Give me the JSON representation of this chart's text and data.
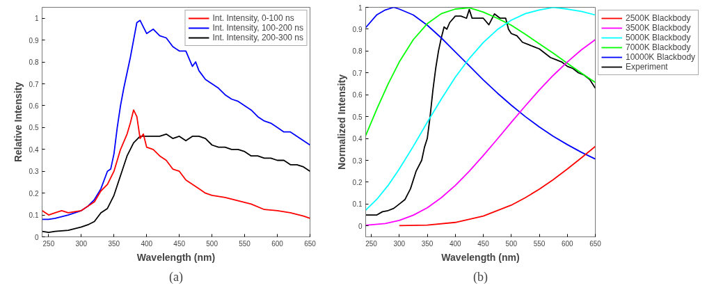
{
  "chart_data": [
    {
      "type": "line",
      "xlabel": "Wavelength (nm)",
      "ylabel": "Relative Intensity",
      "annotations": [
        "(a)"
      ],
      "xlim": [
        240,
        650
      ],
      "ylim": [
        0,
        1.05
      ],
      "xticks": [
        250,
        300,
        350,
        400,
        450,
        500,
        550,
        600,
        650
      ],
      "yticks": [
        0,
        0.1,
        0.2,
        0.3,
        0.4,
        0.5,
        0.6,
        0.7,
        0.8,
        0.9,
        1
      ],
      "grid": false,
      "legend": "top right",
      "marker": "none",
      "line_style": "solid",
      "series": [
        {
          "name": "Int. Intensity, 0-100 ns",
          "color": "#ff0000",
          "x": [
            240,
            250,
            260,
            270,
            280,
            290,
            300,
            310,
            320,
            330,
            340,
            350,
            360,
            370,
            375,
            380,
            385,
            390,
            395,
            400,
            410,
            420,
            430,
            440,
            450,
            460,
            470,
            480,
            490,
            500,
            520,
            540,
            560,
            580,
            600,
            620,
            640,
            650
          ],
          "values": [
            0.12,
            0.1,
            0.11,
            0.12,
            0.11,
            0.115,
            0.12,
            0.14,
            0.16,
            0.21,
            0.24,
            0.3,
            0.4,
            0.47,
            0.52,
            0.58,
            0.55,
            0.45,
            0.47,
            0.41,
            0.4,
            0.37,
            0.35,
            0.31,
            0.3,
            0.26,
            0.24,
            0.22,
            0.2,
            0.19,
            0.18,
            0.165,
            0.15,
            0.125,
            0.12,
            0.11,
            0.095,
            0.085
          ]
        },
        {
          "name": "Int. Intensity, 100-200 ns",
          "color": "#0000ff",
          "x": [
            240,
            250,
            260,
            280,
            300,
            310,
            320,
            330,
            340,
            345,
            350,
            355,
            360,
            365,
            370,
            375,
            380,
            385,
            390,
            395,
            400,
            410,
            420,
            430,
            440,
            450,
            460,
            470,
            475,
            480,
            490,
            500,
            510,
            520,
            530,
            540,
            550,
            560,
            570,
            580,
            590,
            600,
            610,
            620,
            630,
            640,
            650
          ],
          "values": [
            0.08,
            0.08,
            0.085,
            0.1,
            0.12,
            0.14,
            0.17,
            0.22,
            0.3,
            0.31,
            0.38,
            0.5,
            0.6,
            0.68,
            0.75,
            0.82,
            0.9,
            0.98,
            0.99,
            0.96,
            0.93,
            0.95,
            0.92,
            0.91,
            0.87,
            0.85,
            0.85,
            0.78,
            0.8,
            0.76,
            0.72,
            0.7,
            0.68,
            0.65,
            0.63,
            0.62,
            0.6,
            0.58,
            0.55,
            0.53,
            0.52,
            0.5,
            0.48,
            0.48,
            0.46,
            0.44,
            0.42
          ]
        },
        {
          "name": "Int. Intensity, 200-300 ns",
          "color": "#000000",
          "x": [
            240,
            250,
            260,
            280,
            300,
            310,
            320,
            330,
            340,
            350,
            360,
            370,
            380,
            390,
            400,
            410,
            420,
            430,
            440,
            450,
            460,
            470,
            480,
            490,
            500,
            510,
            520,
            530,
            540,
            550,
            560,
            570,
            580,
            590,
            600,
            610,
            620,
            630,
            640,
            650
          ],
          "values": [
            0.025,
            0.02,
            0.025,
            0.03,
            0.045,
            0.055,
            0.07,
            0.11,
            0.13,
            0.19,
            0.28,
            0.37,
            0.43,
            0.46,
            0.46,
            0.46,
            0.46,
            0.47,
            0.45,
            0.46,
            0.44,
            0.46,
            0.46,
            0.45,
            0.42,
            0.41,
            0.41,
            0.4,
            0.4,
            0.39,
            0.37,
            0.37,
            0.36,
            0.36,
            0.35,
            0.35,
            0.33,
            0.33,
            0.32,
            0.3
          ]
        }
      ]
    },
    {
      "type": "line",
      "xlabel": "Wavelength (nm)",
      "ylabel": "Normalized Intensity",
      "annotations": [
        "(b)"
      ],
      "xlim": [
        240,
        650
      ],
      "ylim": [
        -0.05,
        1.0
      ],
      "xticks": [
        250,
        300,
        350,
        400,
        450,
        500,
        550,
        600,
        650
      ],
      "yticks": [
        0,
        0.1,
        0.2,
        0.3,
        0.4,
        0.5,
        0.6,
        0.7,
        0.8,
        0.9,
        1
      ],
      "grid": false,
      "legend": "right",
      "marker": "none",
      "line_style": "solid",
      "series": [
        {
          "name": "2500K Blackbody",
          "color": "#ff0000",
          "x": [
            300,
            350,
            400,
            450,
            500,
            525,
            550,
            575,
            600,
            625,
            650
          ],
          "values": [
            0.001,
            0.004,
            0.016,
            0.045,
            0.095,
            0.129,
            0.168,
            0.212,
            0.26,
            0.311,
            0.364
          ]
        },
        {
          "name": "3500K Blackbody",
          "color": "#ff00ff",
          "x": [
            240,
            275,
            300,
            325,
            350,
            375,
            400,
            425,
            450,
            475,
            500,
            525,
            550,
            575,
            600,
            625,
            650
          ],
          "values": [
            0.003,
            0.011,
            0.025,
            0.049,
            0.083,
            0.129,
            0.185,
            0.25,
            0.322,
            0.397,
            0.474,
            0.549,
            0.622,
            0.689,
            0.75,
            0.805,
            0.852
          ]
        },
        {
          "name": "5000K Blackbody",
          "color": "#00ffff",
          "x": [
            240,
            260,
            280,
            300,
            325,
            350,
            375,
            400,
            425,
            450,
            475,
            500,
            525,
            550,
            575,
            600,
            625,
            650
          ],
          "values": [
            0.072,
            0.122,
            0.185,
            0.26,
            0.364,
            0.474,
            0.58,
            0.68,
            0.766,
            0.839,
            0.898,
            0.941,
            0.971,
            0.988,
            1.0,
            0.992,
            0.981,
            0.965
          ]
        },
        {
          "name": "7000K Blackbody",
          "color": "#00ff00",
          "x": [
            240,
            260,
            280,
            300,
            325,
            350,
            375,
            400,
            425,
            450,
            475,
            500,
            525,
            550,
            575,
            600,
            625,
            650
          ],
          "values": [
            0.413,
            0.535,
            0.649,
            0.75,
            0.852,
            0.925,
            0.971,
            0.992,
            0.998,
            0.978,
            0.95,
            0.918,
            0.877,
            0.833,
            0.79,
            0.744,
            0.699,
            0.656
          ]
        },
        {
          "name": "10000K Blackbody",
          "color": "#0000ff",
          "x": [
            240,
            260,
            275,
            290,
            300,
            325,
            350,
            375,
            400,
            425,
            450,
            475,
            500,
            525,
            550,
            575,
            600,
            625,
            650
          ],
          "values": [
            0.907,
            0.966,
            0.988,
            1.0,
            0.992,
            0.965,
            0.918,
            0.86,
            0.796,
            0.732,
            0.668,
            0.608,
            0.552,
            0.5,
            0.453,
            0.41,
            0.372,
            0.337,
            0.306
          ]
        },
        {
          "name": "Experiment",
          "color": "#000000",
          "x": [
            240,
            250,
            260,
            270,
            280,
            290,
            300,
            310,
            320,
            330,
            340,
            345,
            350,
            355,
            360,
            365,
            370,
            375,
            380,
            385,
            390,
            400,
            410,
            420,
            425,
            430,
            440,
            450,
            460,
            470,
            480,
            490,
            495,
            500,
            510,
            520,
            530,
            540,
            550,
            560,
            570,
            580,
            590,
            600,
            610,
            620,
            630,
            640,
            650
          ],
          "values": [
            0.05,
            0.05,
            0.05,
            0.065,
            0.07,
            0.08,
            0.1,
            0.12,
            0.17,
            0.25,
            0.3,
            0.36,
            0.4,
            0.5,
            0.62,
            0.72,
            0.8,
            0.86,
            0.91,
            0.9,
            0.93,
            0.96,
            0.96,
            0.95,
            0.99,
            0.95,
            0.95,
            0.95,
            0.92,
            0.97,
            0.95,
            0.95,
            0.9,
            0.88,
            0.87,
            0.84,
            0.83,
            0.82,
            0.81,
            0.79,
            0.77,
            0.76,
            0.75,
            0.73,
            0.72,
            0.7,
            0.69,
            0.67,
            0.63
          ]
        }
      ]
    }
  ]
}
